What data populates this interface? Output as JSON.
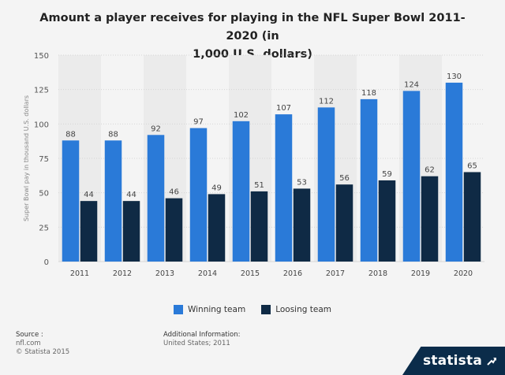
{
  "colors": {
    "winning": "#2a7ad8",
    "losing": "#0f2a45",
    "bg": "#f4f4f4",
    "band": "#ebebeb"
  },
  "chart_data": {
    "type": "bar",
    "title": "Amount a player receives for playing in the NFL Super Bowl 2011-2020 (in 1,000 U.S. dollars)",
    "title_lines": [
      "Amount a player receives for playing in the NFL Super Bowl 2011-2020 (in",
      "1,000 U.S. dollars)"
    ],
    "xlabel": "",
    "ylabel": "Super Bowl pay in thousand U.S. dollars",
    "ylim": [
      0,
      150
    ],
    "yticks": [
      0,
      25,
      50,
      75,
      100,
      125,
      150
    ],
    "grid": true,
    "legend_position": "bottom",
    "categories": [
      "2011",
      "2012",
      "2013",
      "2014",
      "2015",
      "2016",
      "2017",
      "2018",
      "2019",
      "2020"
    ],
    "series": [
      {
        "name": "Winning team",
        "values": [
          88,
          88,
          92,
          97,
          102,
          107,
          112,
          118,
          124,
          130
        ]
      },
      {
        "name": "Loosing team",
        "values": [
          44,
          44,
          46,
          49,
          51,
          53,
          56,
          59,
          62,
          65
        ]
      }
    ]
  },
  "footer": {
    "source_label": "Source :",
    "source_lines": [
      "nfl.com",
      "© Statista 2015"
    ],
    "info_label": "Additional Information:",
    "info_lines": [
      "United States; 2011"
    ]
  },
  "brand": {
    "name": "statista",
    "icon": "statista-logo-icon"
  }
}
